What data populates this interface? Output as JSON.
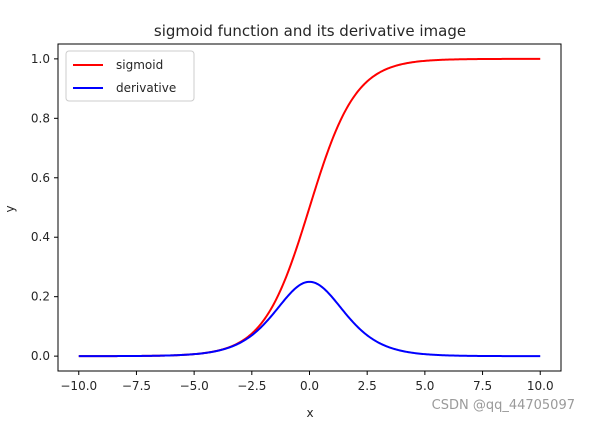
{
  "chart_data": {
    "type": "line",
    "title": "sigmoid function and its derivative image",
    "xlabel": "x",
    "ylabel": "y",
    "xlim": [
      -10.9,
      10.9
    ],
    "ylim": [
      -0.05,
      1.05
    ],
    "x_ticks": [
      -10.0,
      -7.5,
      -5.0,
      -2.5,
      0.0,
      2.5,
      5.0,
      7.5,
      10.0
    ],
    "x_tick_labels": [
      "−10.0",
      "−7.5",
      "−5.0",
      "−2.5",
      "0.0",
      "2.5",
      "5.0",
      "7.5",
      "10.0"
    ],
    "y_ticks": [
      0.0,
      0.2,
      0.4,
      0.6,
      0.8,
      1.0
    ],
    "y_tick_labels": [
      "0.0",
      "0.2",
      "0.4",
      "0.6",
      "0.8",
      "1.0"
    ],
    "grid": false,
    "legend_position": "top-left",
    "x_range": [
      -10,
      10
    ],
    "series": [
      {
        "name": "sigmoid",
        "color": "#ff0000",
        "x": [
          -10,
          -9,
          -8,
          -7,
          -6,
          -5,
          -4.5,
          -4,
          -3.5,
          -3,
          -2.5,
          -2,
          -1.5,
          -1,
          -0.5,
          0,
          0.5,
          1,
          1.5,
          2,
          2.5,
          3,
          3.5,
          4,
          4.5,
          5,
          6,
          7,
          8,
          9,
          10
        ],
        "y": [
          0.0,
          0.0001,
          0.0003,
          0.0009,
          0.0025,
          0.0067,
          0.011,
          0.018,
          0.0293,
          0.0474,
          0.0759,
          0.1192,
          0.1824,
          0.2689,
          0.3775,
          0.5,
          0.6225,
          0.7311,
          0.8176,
          0.8808,
          0.9241,
          0.9526,
          0.9707,
          0.982,
          0.989,
          0.9933,
          0.9975,
          0.9991,
          0.9997,
          0.9999,
          1.0
        ]
      },
      {
        "name": "derivative",
        "color": "#0000ff",
        "x": [
          -10,
          -9,
          -8,
          -7,
          -6,
          -5,
          -4.5,
          -4,
          -3.5,
          -3,
          -2.5,
          -2,
          -1.5,
          -1,
          -0.5,
          0,
          0.5,
          1,
          1.5,
          2,
          2.5,
          3,
          3.5,
          4,
          4.5,
          5,
          6,
          7,
          8,
          9,
          10
        ],
        "y": [
          0.0,
          0.0001,
          0.0003,
          0.0009,
          0.0025,
          0.0066,
          0.0109,
          0.0177,
          0.0285,
          0.0452,
          0.0701,
          0.105,
          0.1491,
          0.1966,
          0.235,
          0.25,
          0.235,
          0.1966,
          0.1491,
          0.105,
          0.0701,
          0.0452,
          0.0285,
          0.0177,
          0.0109,
          0.0066,
          0.0025,
          0.0009,
          0.0003,
          0.0001,
          0.0
        ]
      }
    ]
  },
  "watermark": "CSDN @qq_44705097"
}
